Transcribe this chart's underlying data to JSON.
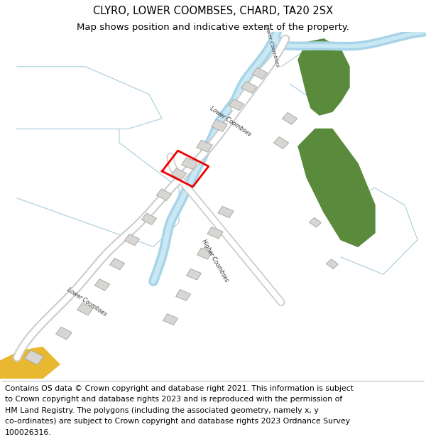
{
  "title_line1": "CLYRO, LOWER COOMBSES, CHARD, TA20 2SX",
  "title_line2": "Map shows position and indicative extent of the property.",
  "title_fontsize": 10.5,
  "subtitle_fontsize": 9.5,
  "footer_lines": [
    "Contains OS data © Crown copyright and database right 2021. This information is subject",
    "to Crown copyright and database rights 2023 and is reproduced with the permission of",
    "HM Land Registry. The polygons (including the associated geometry, namely x, y",
    "co-ordinates) are subject to Crown copyright and database rights 2023 Ordnance Survey",
    "100026316."
  ],
  "footer_fontsize": 7.8,
  "map_bg": "#f8f8f8",
  "road_fill": "#ffffff",
  "road_border": "#cccccc",
  "water_color": "#a8d4e8",
  "water_outline": "#88b8d0",
  "green_color": "#5a8a3c",
  "building_fill": "#d8d6d2",
  "building_border": "#aaaaaa",
  "highlight_color": "#ee0000",
  "yellow_color": "#e8b830",
  "light_blue_line": "#aaccdd",
  "fig_width": 6.0,
  "fig_height": 6.25,
  "dpi": 100
}
